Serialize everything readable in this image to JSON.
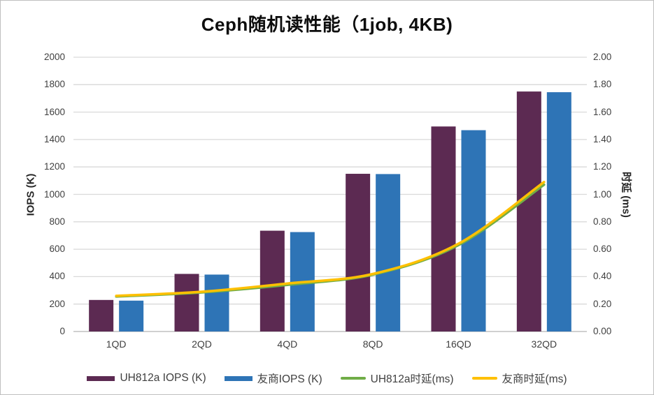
{
  "chart_data": {
    "type": "bar",
    "combo": "clustered-bars-with-smooth-lines",
    "title": "Ceph随机读性能（1job, 4KB)",
    "categories": [
      "1QD",
      "2QD",
      "4QD",
      "8QD",
      "16QD",
      "32QD"
    ],
    "series": [
      {
        "name": "UH812a IOPS (K)",
        "type": "bar",
        "axis": "left",
        "color": "#5C2A52",
        "values": [
          230,
          420,
          735,
          1150,
          1495,
          1750
        ]
      },
      {
        "name": "友商IOPS (K)",
        "type": "bar",
        "axis": "left",
        "color": "#2E74B6",
        "values": [
          225,
          415,
          725,
          1148,
          1468,
          1745
        ]
      },
      {
        "name": "UH812a时延(ms)",
        "type": "line",
        "axis": "right",
        "color": "#70AD47",
        "values": [
          0.255,
          0.285,
          0.34,
          0.415,
          0.63,
          1.07
        ]
      },
      {
        "name": "友商时延(ms)",
        "type": "line",
        "axis": "right",
        "color": "#FFC000",
        "values": [
          0.26,
          0.29,
          0.35,
          0.42,
          0.64,
          1.09
        ]
      }
    ],
    "left_axis": {
      "label": "IOPS (K)",
      "min": 0,
      "max": 2000,
      "step": 200,
      "ticks": [
        "0",
        "200",
        "400",
        "600",
        "800",
        "1000",
        "1200",
        "1400",
        "1600",
        "1800",
        "2000"
      ]
    },
    "right_axis": {
      "label": "时延 (ms)",
      "min": 0,
      "max": 2.0,
      "step": 0.2,
      "ticks": [
        "0.00",
        "0.20",
        "0.40",
        "0.60",
        "0.80",
        "1.00",
        "1.20",
        "1.40",
        "1.60",
        "1.80",
        "2.00"
      ]
    },
    "grid": true,
    "legend_position": "bottom",
    "background_color": "#FFFFFF",
    "gridline_color": "#D9D9D9",
    "axisline_color": "#D0D0D0"
  }
}
